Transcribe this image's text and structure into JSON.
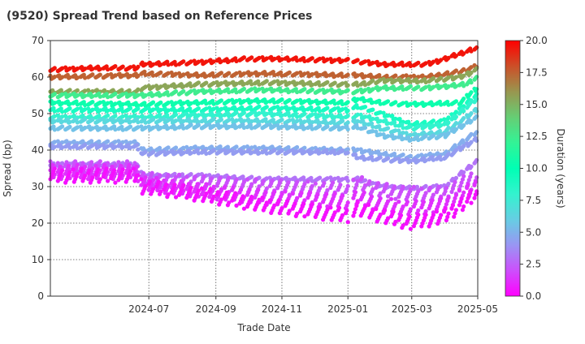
{
  "chart_data": {
    "type": "scatter",
    "title": "(9520)   Spread Trend based on Reference Prices",
    "xlabel": "Trade Date",
    "ylabel": "Spread (bp)",
    "x_range": [
      "2024-04-01",
      "2025-05-01"
    ],
    "ylim": [
      0,
      70
    ],
    "yticks": [
      0,
      10,
      20,
      30,
      40,
      50,
      60,
      70
    ],
    "xticks": [
      {
        "date": "2024-07-01",
        "label": "2024-07"
      },
      {
        "date": "2024-09-01",
        "label": "2024-09"
      },
      {
        "date": "2024-11-01",
        "label": "2024-11"
      },
      {
        "date": "2025-01-01",
        "label": "2025-01"
      },
      {
        "date": "2025-03-01",
        "label": "2025-03"
      },
      {
        "date": "2025-05-01",
        "label": "2025-05"
      }
    ],
    "grid": true,
    "colorbar": {
      "label": "Duration (years)",
      "range": [
        0,
        20
      ],
      "ticks": [
        {
          "value": 0,
          "label": "0.0"
        },
        {
          "value": 2.5,
          "label": "2.5"
        },
        {
          "value": 5,
          "label": "5.0"
        },
        {
          "value": 7.5,
          "label": "7.5"
        },
        {
          "value": 10,
          "label": "10.0"
        },
        {
          "value": 12.5,
          "label": "12.5"
        },
        {
          "value": 15,
          "label": "15.0"
        },
        {
          "value": 17.5,
          "label": "17.5"
        },
        {
          "value": 20,
          "label": "20.0"
        }
      ],
      "colormap": "rainbow"
    },
    "series": [
      {
        "duration": 19.5,
        "points": [
          [
            "2024-04-01",
            62
          ],
          [
            "2024-05-15",
            62.5
          ],
          [
            "2024-06-20",
            62.5
          ],
          [
            "2024-06-25",
            63.5
          ],
          [
            "2024-08-15",
            64
          ],
          [
            "2024-10-01",
            65
          ],
          [
            "2024-11-01",
            65
          ],
          [
            "2024-12-31",
            64.5
          ],
          [
            "2025-01-05",
            64.5
          ],
          [
            "2025-02-01",
            63.5
          ],
          [
            "2025-03-15",
            63.5
          ],
          [
            "2025-04-01",
            65
          ],
          [
            "2025-04-30",
            68
          ]
        ]
      },
      {
        "duration": 17.5,
        "points": [
          [
            "2024-04-01",
            60
          ],
          [
            "2024-06-20",
            60.5
          ],
          [
            "2024-06-25",
            61
          ],
          [
            "2024-08-15",
            60.5
          ],
          [
            "2024-10-15",
            61
          ],
          [
            "2024-12-31",
            60.5
          ],
          [
            "2025-01-10",
            60.5
          ],
          [
            "2025-02-01",
            60
          ],
          [
            "2025-03-15",
            60
          ],
          [
            "2025-04-15",
            61.5
          ],
          [
            "2025-04-30",
            63
          ]
        ]
      },
      {
        "duration": 15.5,
        "points": [
          [
            "2024-04-01",
            56
          ],
          [
            "2024-06-20",
            56
          ],
          [
            "2024-06-25",
            57
          ],
          [
            "2024-08-15",
            58
          ],
          [
            "2024-10-15",
            58.5
          ],
          [
            "2024-12-31",
            58
          ],
          [
            "2025-01-10",
            58
          ],
          [
            "2025-02-01",
            59
          ],
          [
            "2025-03-15",
            59
          ],
          [
            "2025-04-15",
            60
          ],
          [
            "2025-04-30",
            62
          ]
        ]
      },
      {
        "duration": 12.5,
        "points": [
          [
            "2024-04-01",
            55
          ],
          [
            "2024-06-25",
            55
          ],
          [
            "2024-08-15",
            56
          ],
          [
            "2024-10-15",
            56.5
          ],
          [
            "2024-12-31",
            56
          ],
          [
            "2025-01-10",
            56
          ],
          [
            "2025-02-01",
            57
          ],
          [
            "2025-03-15",
            57
          ],
          [
            "2025-04-20",
            58
          ],
          [
            "2025-04-30",
            60
          ]
        ]
      },
      {
        "duration": 10.5,
        "points": [
          [
            "2024-04-01",
            53
          ],
          [
            "2024-06-25",
            52.5
          ],
          [
            "2024-08-15",
            53
          ],
          [
            "2024-10-15",
            53.5
          ],
          [
            "2024-12-31",
            53
          ],
          [
            "2025-01-10",
            54
          ],
          [
            "2025-02-01",
            53
          ],
          [
            "2025-03-01",
            52.5
          ],
          [
            "2025-04-15",
            53
          ],
          [
            "2025-04-30",
            57
          ]
        ]
      },
      {
        "duration": 9.0,
        "points": [
          [
            "2024-04-01",
            51
          ],
          [
            "2024-06-25",
            51
          ],
          [
            "2024-08-15",
            51
          ],
          [
            "2024-10-15",
            51.5
          ],
          [
            "2024-12-31",
            51
          ],
          [
            "2025-01-10",
            52
          ],
          [
            "2025-02-01",
            50
          ],
          [
            "2025-03-01",
            47
          ],
          [
            "2025-04-01",
            48
          ],
          [
            "2025-04-30",
            55
          ]
        ]
      },
      {
        "duration": 8.0,
        "points": [
          [
            "2024-04-01",
            49
          ],
          [
            "2024-06-25",
            49
          ],
          [
            "2024-08-15",
            49.5
          ],
          [
            "2024-10-15",
            50
          ],
          [
            "2024-12-31",
            49
          ],
          [
            "2025-01-10",
            49.5
          ],
          [
            "2025-02-01",
            48
          ],
          [
            "2025-03-01",
            46
          ],
          [
            "2025-04-01",
            47
          ],
          [
            "2025-04-30",
            54
          ]
        ]
      },
      {
        "duration": 6.5,
        "points": [
          [
            "2024-04-01",
            48
          ],
          [
            "2024-06-25",
            48
          ],
          [
            "2024-08-15",
            48
          ],
          [
            "2024-10-15",
            48
          ],
          [
            "2024-12-31",
            47.5
          ],
          [
            "2025-01-10",
            48
          ],
          [
            "2025-02-01",
            46
          ],
          [
            "2025-03-01",
            44
          ],
          [
            "2025-04-01",
            45
          ],
          [
            "2025-04-30",
            51
          ]
        ]
      },
      {
        "duration": 5.5,
        "points": [
          [
            "2024-04-01",
            46
          ],
          [
            "2024-06-25",
            46
          ],
          [
            "2024-08-15",
            46.5
          ],
          [
            "2024-10-15",
            46.5
          ],
          [
            "2024-12-31",
            46
          ],
          [
            "2025-01-10",
            46.5
          ],
          [
            "2025-02-01",
            44
          ],
          [
            "2025-03-01",
            43
          ],
          [
            "2025-04-01",
            44
          ],
          [
            "2025-04-30",
            49
          ]
        ]
      },
      {
        "duration": 4.8,
        "points": [
          [
            "2024-04-01",
            42
          ],
          [
            "2024-06-20",
            42
          ],
          [
            "2024-06-25",
            40
          ],
          [
            "2024-08-15",
            40.5
          ],
          [
            "2024-10-15",
            40.5
          ],
          [
            "2024-12-31",
            40
          ],
          [
            "2025-01-10",
            40
          ],
          [
            "2025-02-01",
            39
          ],
          [
            "2025-03-01",
            38
          ],
          [
            "2025-04-01",
            39
          ],
          [
            "2025-04-30",
            45
          ]
        ]
      },
      {
        "duration": 4.2,
        "points": [
          [
            "2024-04-01",
            41
          ],
          [
            "2024-06-20",
            41
          ],
          [
            "2024-06-25",
            39
          ],
          [
            "2024-08-15",
            39.5
          ],
          [
            "2024-10-15",
            39.5
          ],
          [
            "2024-12-31",
            39.5
          ],
          [
            "2025-01-10",
            38
          ],
          [
            "2025-02-01",
            37.5
          ],
          [
            "2025-03-01",
            37
          ],
          [
            "2025-04-01",
            38
          ],
          [
            "2025-04-30",
            43
          ]
        ]
      },
      {
        "duration": 3.0,
        "points": [
          [
            "2024-04-01",
            36
          ],
          [
            "2024-06-20",
            36
          ],
          [
            "2024-06-25",
            33
          ],
          [
            "2024-08-15",
            33
          ],
          [
            "2024-10-15",
            32
          ],
          [
            "2024-12-31",
            32
          ],
          [
            "2025-01-10",
            32
          ],
          [
            "2025-02-01",
            30
          ],
          [
            "2025-03-01",
            29.5
          ],
          [
            "2025-04-01",
            30
          ],
          [
            "2025-04-30",
            37
          ]
        ]
      },
      {
        "duration": 2.0,
        "points": [
          [
            "2024-04-01",
            35
          ],
          [
            "2024-06-20",
            35
          ],
          [
            "2024-06-25",
            32
          ],
          [
            "2024-08-15",
            31
          ],
          [
            "2024-10-15",
            30
          ],
          [
            "2024-12-31",
            29
          ],
          [
            "2025-01-10",
            31
          ],
          [
            "2025-02-01",
            29
          ],
          [
            "2025-03-01",
            28
          ],
          [
            "2025-04-01",
            28
          ],
          [
            "2025-04-30",
            33
          ]
        ]
      },
      {
        "duration": 1.2,
        "points": [
          [
            "2024-04-01",
            34
          ],
          [
            "2024-06-20",
            34
          ],
          [
            "2024-06-25",
            31
          ],
          [
            "2024-08-15",
            29
          ],
          [
            "2024-10-15",
            27
          ],
          [
            "2024-12-31",
            26
          ],
          [
            "2025-01-10",
            27
          ],
          [
            "2025-02-01",
            25
          ],
          [
            "2025-03-01",
            24
          ],
          [
            "2025-04-01",
            25
          ],
          [
            "2025-04-30",
            30
          ]
        ]
      },
      {
        "duration": 0.4,
        "points": [
          [
            "2024-04-01",
            33
          ],
          [
            "2024-06-20",
            33
          ],
          [
            "2024-06-25",
            30
          ],
          [
            "2024-08-15",
            28
          ],
          [
            "2024-10-15",
            25
          ],
          [
            "2024-12-31",
            22
          ],
          [
            "2025-01-10",
            24
          ],
          [
            "2025-02-01",
            22
          ],
          [
            "2025-03-01",
            20
          ],
          [
            "2025-04-01",
            22
          ],
          [
            "2025-04-30",
            28
          ]
        ]
      }
    ]
  }
}
